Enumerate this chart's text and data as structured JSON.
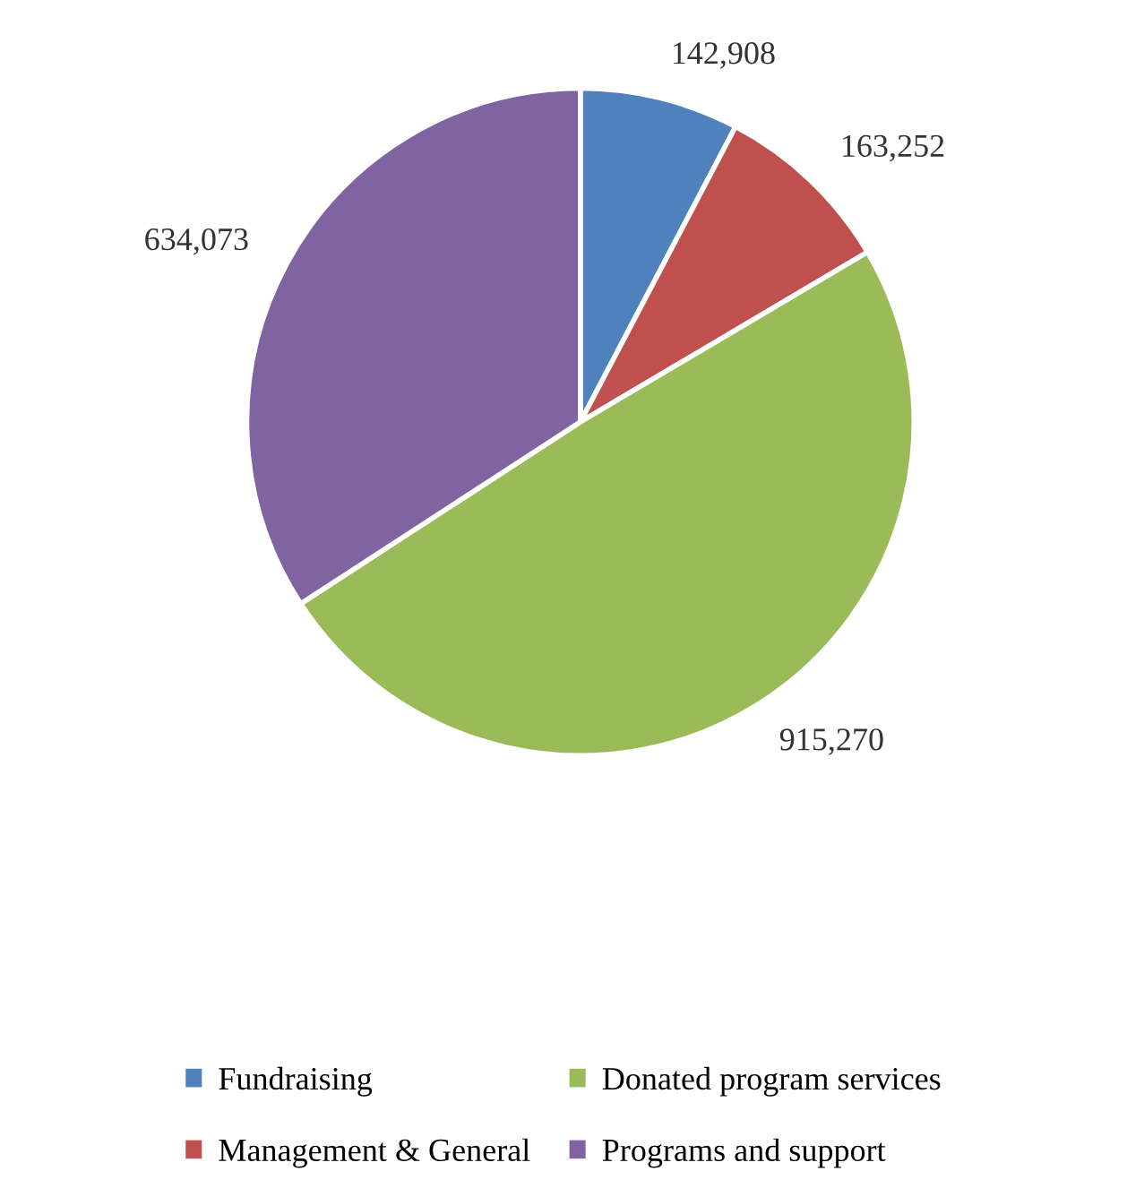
{
  "chart_data": {
    "type": "pie",
    "categories": [
      "Fundraising",
      "Management & General",
      "Donated program services",
      "Programs and support"
    ],
    "values": [
      142908,
      163252,
      915270,
      634073
    ],
    "value_labels": [
      "142,908",
      "163,252",
      "915,270",
      "634,073"
    ],
    "colors": [
      "#4f81bd",
      "#c0504d",
      "#9bbb59",
      "#8064a2"
    ],
    "legend": "bottom"
  }
}
